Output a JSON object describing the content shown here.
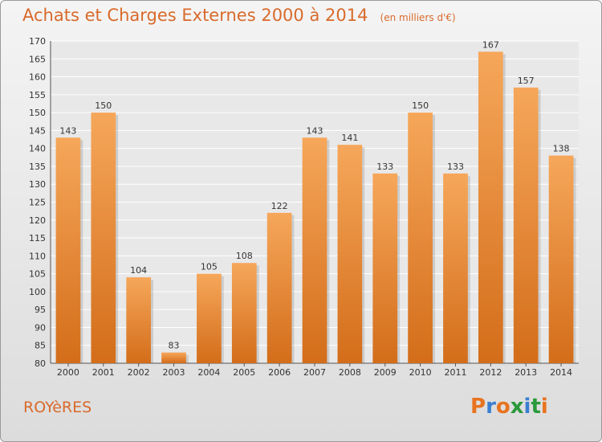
{
  "header": {
    "title": "Achats et Charges Externes 2000 à 2014",
    "subtitle": "(en milliers d'€)"
  },
  "footer": {
    "commune": "ROYèRES",
    "brand_letters": [
      "P",
      "r",
      "o",
      "x",
      "i",
      "t",
      "i"
    ],
    "brand_colors": [
      "#e8731f",
      "#3a7fd0",
      "#e8731f",
      "#2a9a3a",
      "#3a7fd0",
      "#2a9a3a",
      "#e8731f"
    ]
  },
  "chart_data": {
    "type": "bar",
    "categories": [
      "2000",
      "2001",
      "2002",
      "2003",
      "2004",
      "2005",
      "2006",
      "2007",
      "2008",
      "2009",
      "2010",
      "2011",
      "2012",
      "2013",
      "2014"
    ],
    "values": [
      143,
      150,
      104,
      83,
      105,
      108,
      122,
      143,
      141,
      133,
      150,
      133,
      167,
      157,
      138
    ],
    "data_labels": [
      "143",
      "150",
      "104",
      "83",
      "105",
      "108",
      "122",
      "143",
      "141",
      "133",
      "150",
      "133",
      "167",
      "157",
      "138"
    ],
    "ylim": [
      80,
      170
    ],
    "yticks": [
      80,
      85,
      90,
      95,
      100,
      105,
      110,
      115,
      120,
      125,
      130,
      135,
      140,
      145,
      150,
      155,
      160,
      165,
      170
    ],
    "grid": true,
    "colors": {
      "bar_light": "#f6a75a",
      "bar_dark": "#d36d1a",
      "grid": "#ffffff",
      "plot_bg": "#e8e8e8",
      "text": "#333333"
    }
  }
}
